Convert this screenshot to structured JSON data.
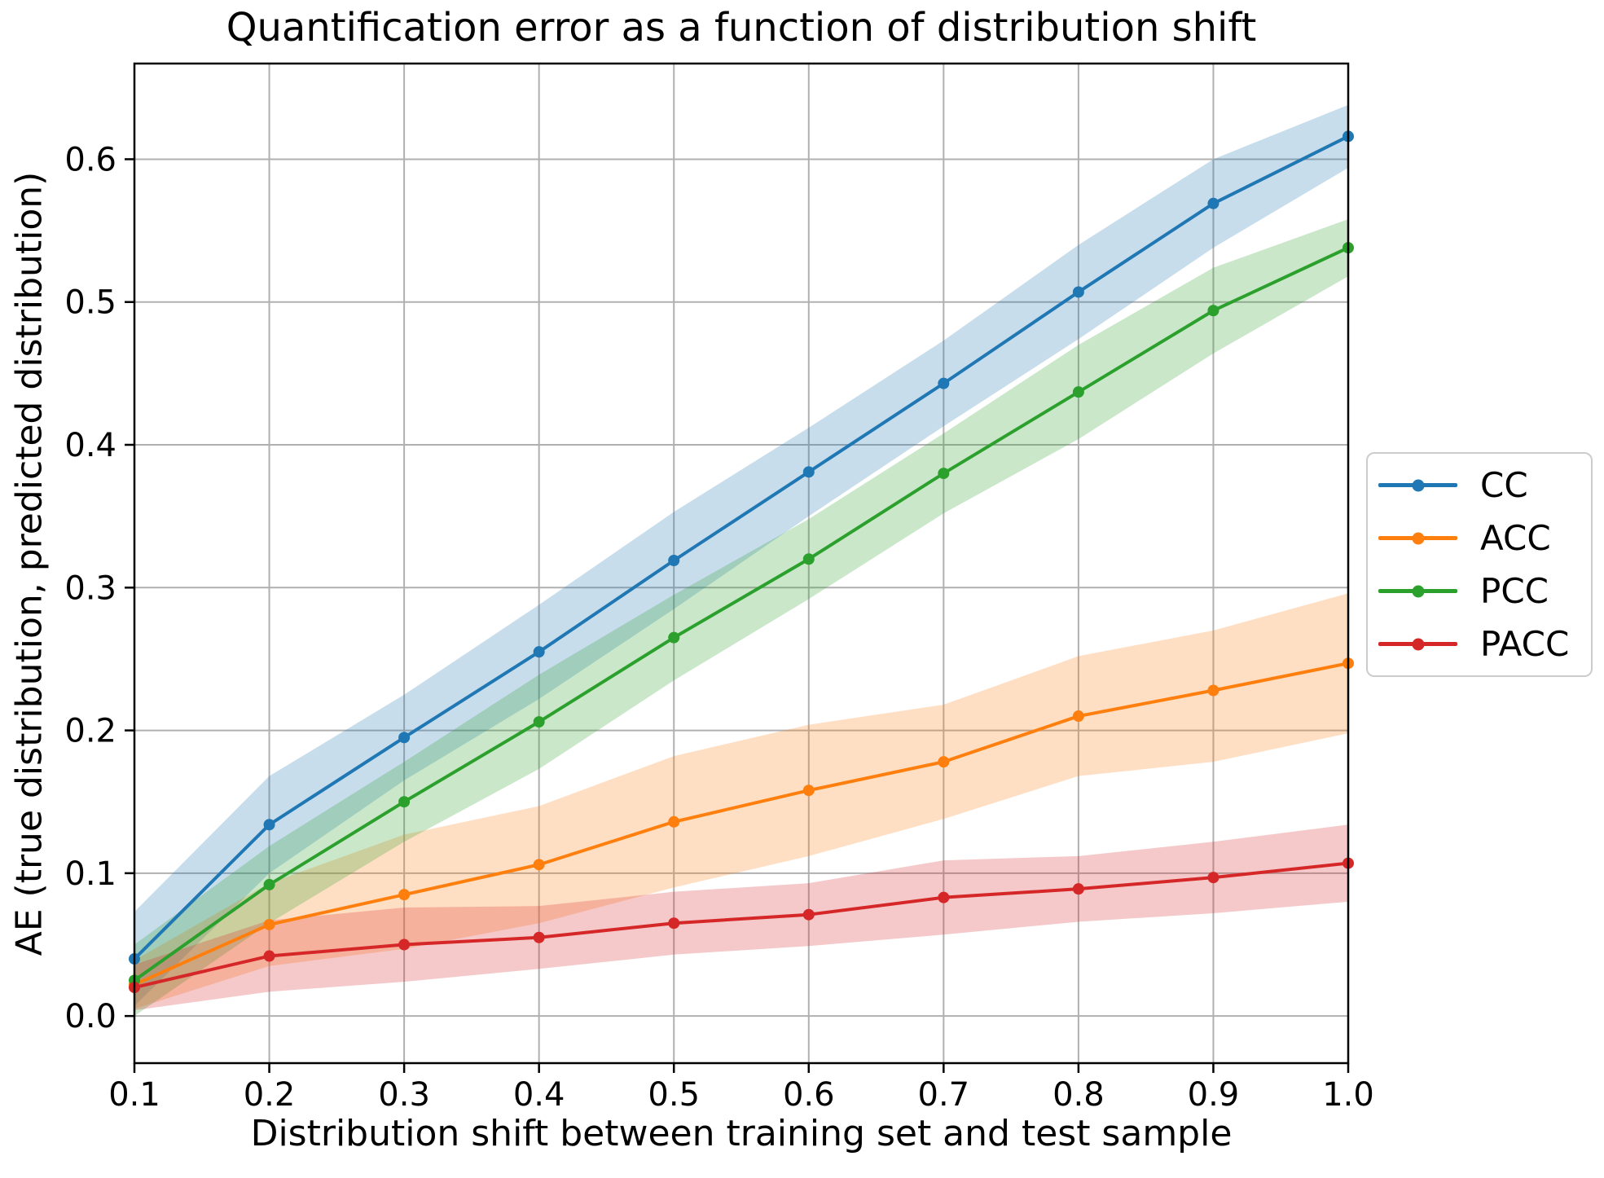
{
  "chart_data": {
    "type": "line",
    "title": "Quantification error as a function of distribution shift",
    "xlabel": "Distribution shift between training set and test sample",
    "ylabel": "AE (true distribution, predicted distribution)",
    "x": [
      0.1,
      0.2,
      0.3,
      0.4,
      0.5,
      0.6,
      0.7,
      0.8,
      0.9,
      1.0
    ],
    "x_tick_labels": [
      "0.1",
      "0.2",
      "0.3",
      "0.4",
      "0.5",
      "0.6",
      "0.7",
      "0.8",
      "0.9",
      "1.0"
    ],
    "y_ticks": [
      0.0,
      0.1,
      0.2,
      0.3,
      0.4,
      0.5,
      0.6
    ],
    "y_tick_labels": [
      "0.0",
      "0.1",
      "0.2",
      "0.3",
      "0.4",
      "0.5",
      "0.6"
    ],
    "xlim": [
      0.1,
      1.0
    ],
    "ylim": [
      -0.033,
      0.667
    ],
    "grid": true,
    "legend_position": "right of axes, vertically centered",
    "series": [
      {
        "name": "CC",
        "color": "#1f77b4",
        "values": [
          0.04,
          0.134,
          0.195,
          0.255,
          0.319,
          0.381,
          0.443,
          0.507,
          0.569,
          0.616
        ],
        "band_lower": [
          0.007,
          0.1,
          0.165,
          0.222,
          0.285,
          0.35,
          0.413,
          0.474,
          0.538,
          0.594
        ],
        "band_upper": [
          0.073,
          0.168,
          0.225,
          0.288,
          0.353,
          0.412,
          0.473,
          0.54,
          0.6,
          0.638
        ]
      },
      {
        "name": "ACC",
        "color": "#ff7f0e",
        "values": [
          0.022,
          0.064,
          0.085,
          0.106,
          0.136,
          0.158,
          0.178,
          0.21,
          0.228,
          0.247
        ],
        "band_lower": [
          0.005,
          0.035,
          0.047,
          0.065,
          0.09,
          0.112,
          0.138,
          0.168,
          0.178,
          0.198
        ],
        "band_upper": [
          0.039,
          0.093,
          0.127,
          0.147,
          0.182,
          0.204,
          0.218,
          0.252,
          0.27,
          0.296
        ]
      },
      {
        "name": "PCC",
        "color": "#2ca02c",
        "values": [
          0.025,
          0.092,
          0.15,
          0.206,
          0.265,
          0.32,
          0.38,
          0.437,
          0.494,
          0.538
        ],
        "band_lower": [
          0.0,
          0.065,
          0.122,
          0.173,
          0.235,
          0.292,
          0.352,
          0.404,
          0.464,
          0.518
        ],
        "band_upper": [
          0.05,
          0.119,
          0.178,
          0.239,
          0.295,
          0.348,
          0.408,
          0.47,
          0.524,
          0.558
        ]
      },
      {
        "name": "PACC",
        "color": "#d62728",
        "values": [
          0.02,
          0.042,
          0.05,
          0.055,
          0.065,
          0.071,
          0.083,
          0.089,
          0.097,
          0.107
        ],
        "band_lower": [
          0.004,
          0.017,
          0.024,
          0.033,
          0.043,
          0.049,
          0.057,
          0.066,
          0.072,
          0.08
        ],
        "band_upper": [
          0.036,
          0.067,
          0.076,
          0.077,
          0.087,
          0.093,
          0.109,
          0.112,
          0.122,
          0.134
        ]
      }
    ],
    "legend_entries": [
      "CC",
      "ACC",
      "PCC",
      "PACC"
    ],
    "band_opacity": 0.25,
    "grid_color": "#b0b0b0",
    "spine_color": "#000000"
  }
}
